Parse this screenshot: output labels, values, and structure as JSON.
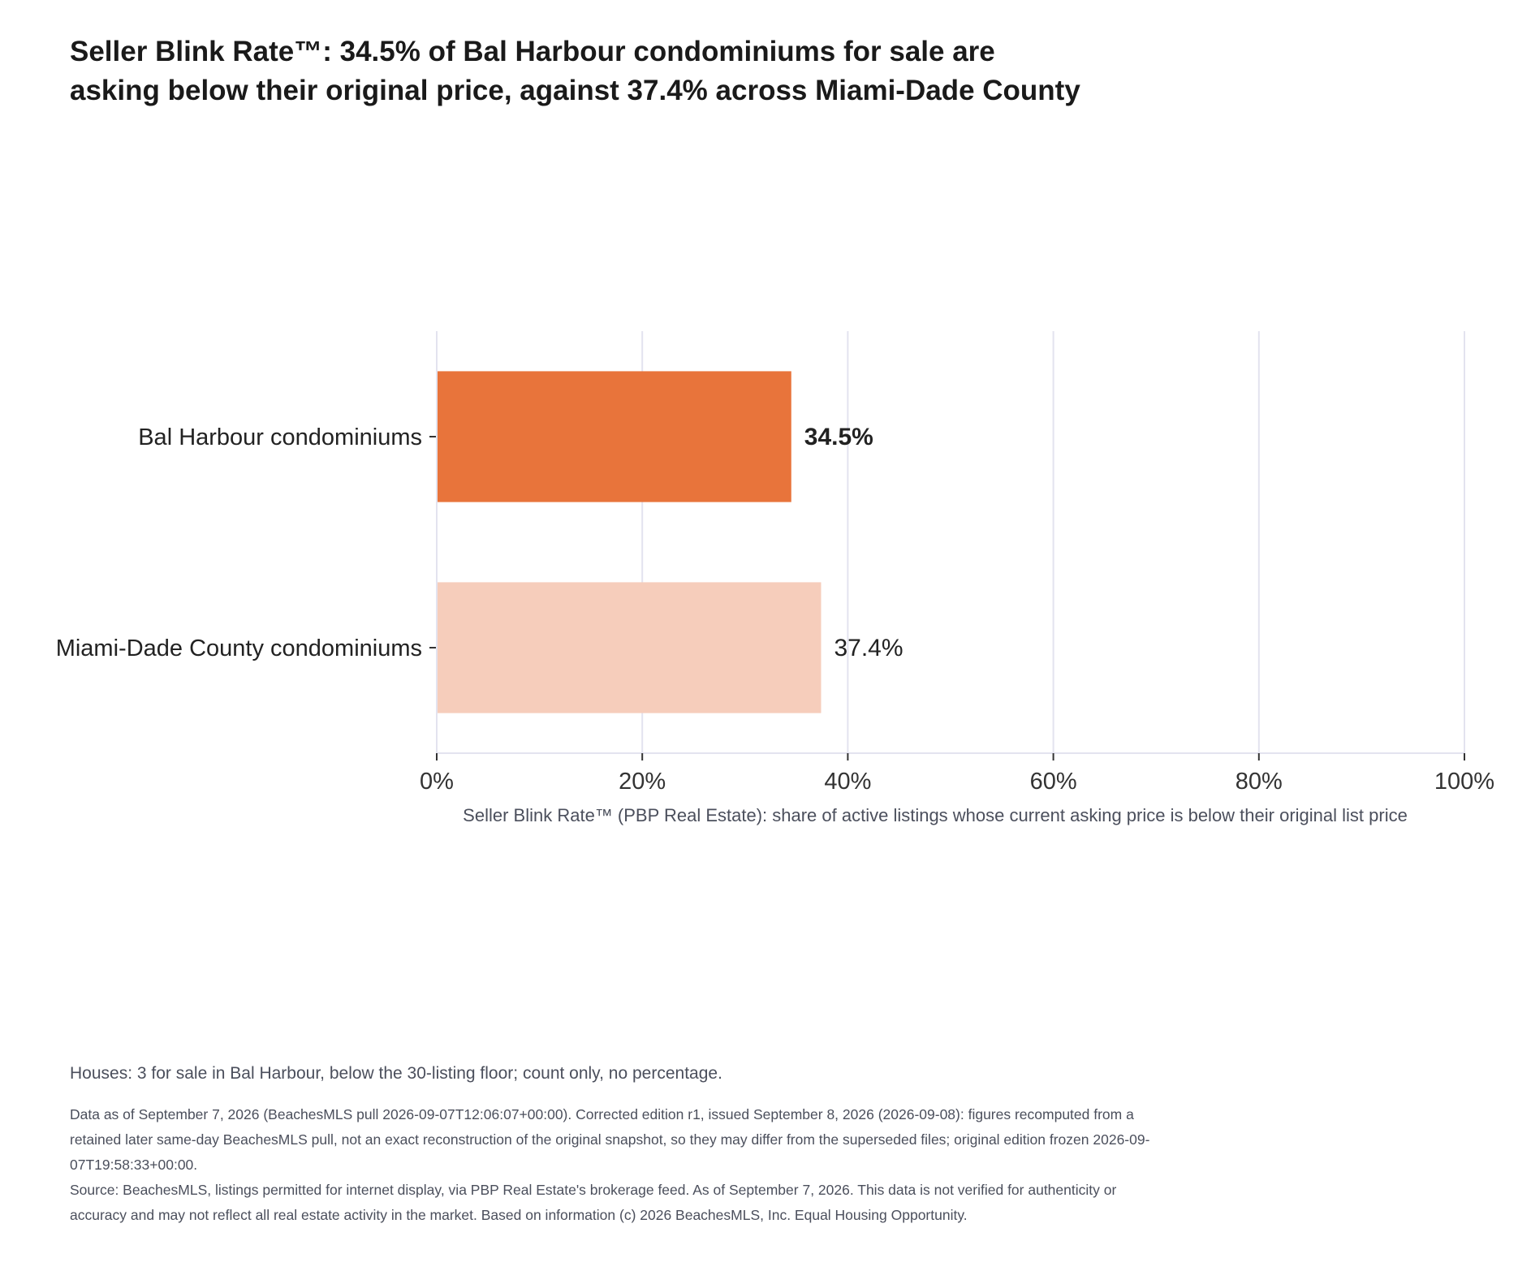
{
  "chart_data": {
    "type": "bar",
    "orientation": "horizontal",
    "title": "Seller Blink Rate™: 34.5% of Bal Harbour condominiums for sale are asking below their original price, against 37.4% across Miami-Dade County",
    "categories": [
      "Bal Harbour condominiums",
      "Miami-Dade County condominiums"
    ],
    "values": [
      34.5,
      37.4
    ],
    "value_labels": [
      "34.5%",
      "37.4%"
    ],
    "xlabel": "Seller Blink Rate™ (PBP Real Estate): share of active listings whose current asking price is below their original list price",
    "ylabel": "",
    "xlim": [
      0,
      100
    ],
    "x_ticks": [
      0,
      20,
      40,
      60,
      80,
      100
    ],
    "x_tick_labels": [
      "0%",
      "20%",
      "40%",
      "60%",
      "80%",
      "100%"
    ],
    "grid": true,
    "colors": [
      "#e8743b",
      "#f6cdbb"
    ],
    "label_bold": [
      true,
      false
    ]
  },
  "note": "Houses: 3 for sale in Bal Harbour, below the 30-listing floor; count only, no percentage.",
  "footer": {
    "data_note": "Data as of September 7, 2026 (BeachesMLS pull 2026-09-07T12:06:07+00:00). Corrected edition r1, issued September 8, 2026 (2026-09-08): figures recomputed from a retained later same-day BeachesMLS pull, not an exact reconstruction of the original snapshot, so they may differ from the superseded files; original edition frozen 2026-09-07T19:58:33+00:00.",
    "source": "Source: BeachesMLS, listings permitted for internet display, via PBP Real Estate's brokerage feed. As of September 7, 2026. This data is not verified for authenticity or accuracy and may not reflect all real estate activity in the market. Based on information (c) 2026 BeachesMLS, Inc. Equal Housing Opportunity."
  }
}
